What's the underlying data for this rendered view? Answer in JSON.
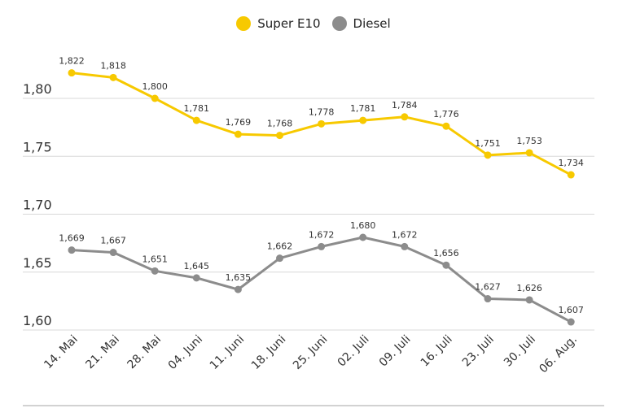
{
  "chart_data": {
    "type": "line",
    "title": "",
    "xlabel": "",
    "ylabel": "",
    "ylim": [
      1.6,
      1.83
    ],
    "yticks": [
      "1,60",
      "1,65",
      "1,70",
      "1,75",
      "1,80"
    ],
    "ytick_values": [
      1.6,
      1.65,
      1.7,
      1.75,
      1.8
    ],
    "grid": true,
    "legend_position": "top-center",
    "categories": [
      "14. Mai",
      "21. Mai",
      "28. Mai",
      "04. Juni",
      "11. Juni",
      "18. Juni",
      "25. Juni",
      "02. Juli",
      "09. Juli",
      "16. Juli",
      "23. Juli",
      "30. Juli",
      "06. Aug."
    ],
    "series": [
      {
        "name": "Super E10",
        "color": "#f7c900",
        "values": [
          1.822,
          1.818,
          1.8,
          1.781,
          1.769,
          1.768,
          1.778,
          1.781,
          1.784,
          1.776,
          1.751,
          1.753,
          1.734
        ],
        "labels": [
          "1,822",
          "1,818",
          "1,800",
          "1,781",
          "1,769",
          "1,768",
          "1,778",
          "1,781",
          "1,784",
          "1,776",
          "1,751",
          "1,753",
          "1,734"
        ]
      },
      {
        "name": "Diesel",
        "color": "#8c8c8c",
        "values": [
          1.669,
          1.667,
          1.651,
          1.645,
          1.635,
          1.662,
          1.672,
          1.68,
          1.672,
          1.656,
          1.627,
          1.626,
          1.607
        ],
        "labels": [
          "1,669",
          "1,667",
          "1,651",
          "1,645",
          "1,635",
          "1,662",
          "1,672",
          "1,680",
          "1,672",
          "1,656",
          "1,627",
          "1,626",
          "1,607"
        ]
      }
    ]
  }
}
